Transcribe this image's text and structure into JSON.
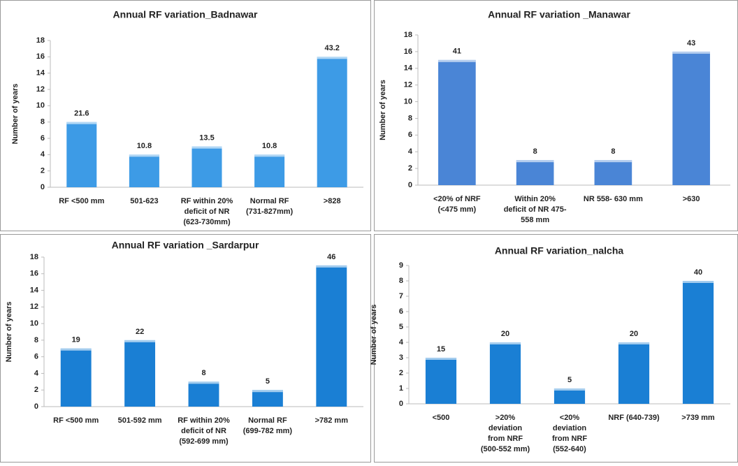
{
  "chart_data": [
    {
      "type": "bar",
      "title": "Annual RF variation_Badnawar",
      "y_label": "Number of years",
      "categories": [
        "RF <500 mm",
        "501-623",
        "RF within 20%\ndeficit of NR\n(623-730mm)",
        "Normal RF\n(731-827mm)",
        ">828"
      ],
      "values": [
        8,
        4,
        5,
        4,
        16
      ],
      "bar_labels": [
        "21.6",
        "10.8",
        "13.5",
        "10.8",
        "43.2"
      ],
      "color": "#3d9be6",
      "ylim": [
        0,
        18
      ],
      "yticks": [
        0,
        2,
        4,
        6,
        8,
        10,
        12,
        14,
        16,
        18
      ],
      "grid": false
    },
    {
      "type": "bar",
      "title": "Annual RF variation _Manawar",
      "y_label": "Number of years",
      "categories": [
        "<20% of NRF\n(<475 mm)",
        "Within 20%\ndeficit of NR 475-\n558 mm",
        "NR 558- 630 mm",
        ">630"
      ],
      "values": [
        15,
        3,
        3,
        16
      ],
      "bar_labels": [
        "41",
        "8",
        "8",
        "43"
      ],
      "color": "#4a85d6",
      "ylim": [
        0,
        18
      ],
      "yticks": [
        0,
        2,
        4,
        6,
        8,
        10,
        12,
        14,
        16,
        18
      ],
      "grid": false
    },
    {
      "type": "bar",
      "title": "Annual RF variation _Sardarpur",
      "y_label": "Number of years",
      "categories": [
        "RF <500 mm",
        "501-592 mm",
        "RF within 20%\ndeficit of NR\n(592-699 mm)",
        "Normal RF\n(699-782 mm)",
        ">782 mm"
      ],
      "values": [
        7,
        8,
        3,
        2,
        17
      ],
      "bar_labels": [
        "19",
        "22",
        "8",
        "5",
        "46"
      ],
      "color": "#1a7fd4",
      "ylim": [
        0,
        18
      ],
      "yticks": [
        0,
        2,
        4,
        6,
        8,
        10,
        12,
        14,
        16,
        18
      ],
      "grid": false
    },
    {
      "type": "bar",
      "title": "Annual RF variation_nalcha",
      "y_label": "Number of years",
      "categories": [
        "<500",
        ">20%\ndeviation\nfrom NRF\n(500-552 mm)",
        "<20%\ndeviation\nfrom NRF\n(552-640)",
        "NRF (640-739)",
        ">739 mm"
      ],
      "values": [
        3,
        4,
        1,
        4,
        8
      ],
      "bar_labels": [
        "15",
        "20",
        "5",
        "20",
        "40"
      ],
      "color": "#1a7fd4",
      "ylim": [
        0,
        9
      ],
      "yticks": [
        0,
        1,
        2,
        3,
        4,
        5,
        6,
        7,
        8,
        9
      ],
      "grid": false
    }
  ]
}
